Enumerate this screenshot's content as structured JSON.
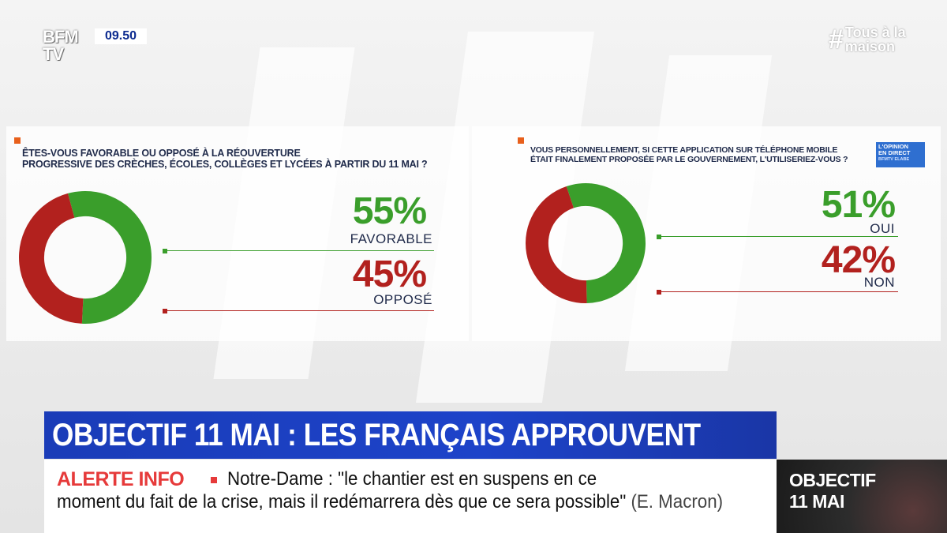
{
  "channel": {
    "logo_line1": "BFM",
    "logo_line2": "TV",
    "clock": "09.50"
  },
  "hashtag": {
    "symbol": "#",
    "line1": "Tous à la",
    "line2": "maison"
  },
  "chart_data": [
    {
      "type": "pie",
      "title": "ÊTES-VOUS FAVORABLE OU OPPOSÉ À LA RÉOUVERTURE PROGRESSIVE DES CRÈCHES, ÉCOLES, COLLÈGES ET LYCÉES À PARTIR DU 11 MAI ?",
      "title_lines": [
        "ÊTES-VOUS FAVORABLE OU OPPOSÉ À LA RÉOUVERTURE",
        "PROGRESSIVE DES CRÈCHES, ÉCOLES, COLLÈGES ET LYCÉES À PARTIR DU 11 MAI ?"
      ],
      "slices": [
        {
          "label": "FAVORABLE",
          "value": 55,
          "display": "55%",
          "color": "#3a9e2b"
        },
        {
          "label": "OPPOSÉ",
          "value": 45,
          "display": "45%",
          "color": "#b2211e"
        }
      ]
    },
    {
      "type": "pie",
      "title": "VOUS PERSONNELLEMENT, SI CETTE APPLICATION SUR TÉLÉPHONE MOBILE ÉTAIT FINALEMENT PROPOSÉE PAR LE GOUVERNEMENT, L'UTILISERIEZ-VOUS ?",
      "title_lines": [
        "VOUS PERSONNELLEMENT, SI CETTE APPLICATION SUR TÉLÉPHONE MOBILE",
        "ÉTAIT FINALEMENT PROPOSÉE PAR LE GOUVERNEMENT, L'UTILISERIEZ-VOUS ?"
      ],
      "slices": [
        {
          "label": "OUI",
          "value": 51,
          "display": "51%",
          "color": "#3a9e2b"
        },
        {
          "label": "NON",
          "value": 42,
          "display": "42%",
          "color": "#b2211e"
        }
      ]
    }
  ],
  "badge": {
    "line1": "L'OPINION",
    "line2": "EN DIRECT",
    "line3": "BFMTV ELABE"
  },
  "lower_third": {
    "headline": "OBJECTIF 11 MAI : LES FRANÇAIS APPROUVENT",
    "alert_label": "ALERTE INFO",
    "ticker_line1": "Notre-Dame : \"le chantier est en suspens en ce",
    "ticker_line2": "moment du fait de la crise, mais il redémarrera dès que ce sera possible\"",
    "ticker_source": "(E. Macron)",
    "side_title_line1": "OBJECTIF",
    "side_title_line2": "11 MAI"
  },
  "colors": {
    "accent_blue": "#1d43c9",
    "alert_red": "#e63a3a",
    "green": "#3a9e2b",
    "red": "#b2211e",
    "orange": "#e8601c"
  }
}
